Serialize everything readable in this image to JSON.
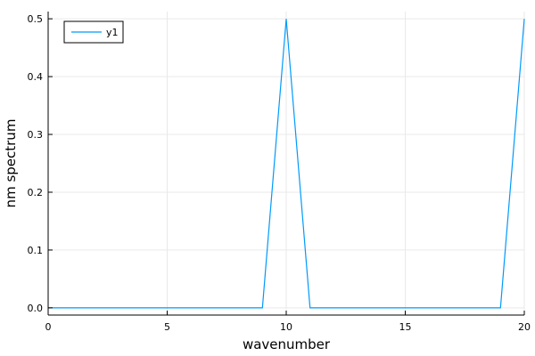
{
  "chart_data": {
    "type": "line",
    "title": "",
    "xlabel": "wavenumber",
    "ylabel": "nm spectrum",
    "xlim": [
      0,
      20
    ],
    "ylim": [
      -0.0125,
      0.5125
    ],
    "x_ticks": [
      0,
      5,
      10,
      15,
      20
    ],
    "y_ticks": [
      0.0,
      0.1,
      0.2,
      0.3,
      0.4,
      0.5
    ],
    "x_tick_labels": [
      "0",
      "5",
      "10",
      "15",
      "20"
    ],
    "y_tick_labels": [
      "0.0",
      "0.1",
      "0.2",
      "0.3",
      "0.4",
      "0.5"
    ],
    "grid": true,
    "legend_position": "top-left",
    "series": [
      {
        "name": "y1",
        "color": "#009AFA",
        "x": [
          0,
          1,
          2,
          3,
          4,
          5,
          6,
          7,
          8,
          9,
          10,
          11,
          12,
          13,
          14,
          15,
          16,
          17,
          18,
          19,
          20
        ],
        "y": [
          0,
          0,
          0,
          0,
          0,
          0,
          0,
          0,
          0,
          0,
          0.5,
          0,
          0,
          0,
          0,
          0,
          0,
          0,
          0,
          0,
          0.5
        ]
      }
    ]
  }
}
